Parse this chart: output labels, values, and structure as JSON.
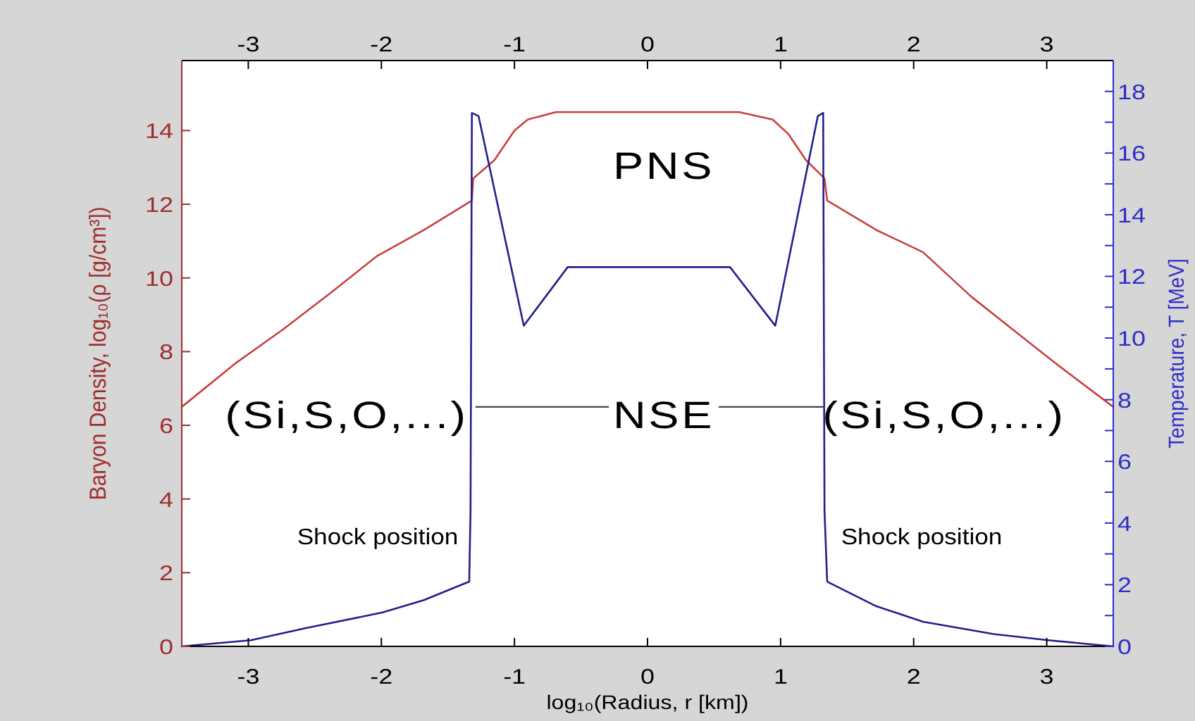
{
  "chart_data": {
    "type": "line",
    "xlabel": "log₁₀(Radius, r [km])",
    "ylabel": "Baryon Density, log₁₀(ρ [g/cm³])",
    "y2label": "Temperature, T [MeV]",
    "xlim": [
      -3.5,
      3.5
    ],
    "xticks": [
      -3,
      -2,
      -1,
      0,
      1,
      2,
      3
    ],
    "x2lim": [
      -3.5,
      3.5
    ],
    "x2ticks": [
      -3,
      -2,
      -1,
      0,
      1,
      2,
      3
    ],
    "ylim": [
      0,
      15.9
    ],
    "yticks": [
      0,
      2,
      4,
      6,
      8,
      10,
      12,
      14
    ],
    "y2lim": [
      0,
      19
    ],
    "y2ticks": [
      0,
      {
        "value": 1,
        "label": null
      },
      2,
      {
        "value": 3,
        "label": null
      },
      4,
      {
        "value": 5,
        "label": null
      },
      6,
      {
        "value": 7,
        "label": null
      },
      8,
      {
        "value": 9,
        "label": null
      },
      10,
      {
        "value": 11,
        "label": null
      },
      12,
      {
        "value": 13,
        "label": null
      },
      14,
      {
        "value": 15,
        "label": null
      },
      16,
      {
        "value": 17,
        "label": null
      },
      18
    ],
    "series": [
      {
        "color": "#c84040",
        "x": [
          -3.5,
          -3.09,
          -2.74,
          -2.38,
          -2.03,
          -1.68,
          -1.32,
          -1.31,
          -1.15,
          -1.0,
          -0.9,
          -0.69,
          0.69,
          0.94,
          1.06,
          1.19,
          1.33,
          1.35,
          1.72,
          2.07,
          2.43,
          2.78,
          3.06,
          3.5
        ],
        "values": [
          6.5,
          7.7,
          8.6,
          9.6,
          10.6,
          11.3,
          12.1,
          12.7,
          13.2,
          14.0,
          14.3,
          14.5,
          14.5,
          14.3,
          13.9,
          13.2,
          12.7,
          12.1,
          11.3,
          10.7,
          9.5,
          8.5,
          7.7,
          6.5
        ]
      },
      {
        "color": "#20208c",
        "axis": "y2",
        "x": [
          -3.5,
          -2.98,
          -2.56,
          -1.99,
          -1.68,
          -1.34,
          -1.33,
          -1.32,
          -1.27,
          -0.93,
          -0.6,
          0.62,
          0.96,
          1.28,
          1.32,
          1.33,
          1.35,
          1.72,
          2.07,
          2.6,
          3.01,
          3.5
        ],
        "values": [
          0,
          0.2,
          0.6,
          1.1,
          1.5,
          2.1,
          4.4,
          17.3,
          17.2,
          10.4,
          12.3,
          12.3,
          10.4,
          17.2,
          17.3,
          4.4,
          2.1,
          1.3,
          0.8,
          0.4,
          0.2,
          0
        ]
      }
    ],
    "annotations": [
      "PNS",
      "(Si,S,O,...)",
      {
        "text": "NSE",
        "x": 1.33,
        "y": 6.5
      },
      "(Si,S,O,...)",
      "Shock position",
      "Shock position"
    ]
  }
}
